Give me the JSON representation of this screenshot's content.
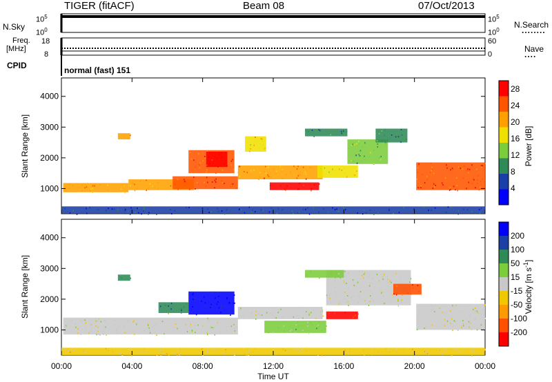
{
  "header": {
    "radar": "TIGER (fitACF)",
    "beam": "Beam 08",
    "date": "07/Oct/2013"
  },
  "sky_panel": {
    "label": "N.Sky",
    "ticks_left": [
      "10^5",
      "10^0"
    ],
    "ticks_right": [
      "10^5",
      "10^0"
    ],
    "right_label": "N.Search",
    "right_dots": "........"
  },
  "freq_panel": {
    "label_line1": "Freq.",
    "label_line2": "[MHz]",
    "ticks_left": [
      "18",
      "8"
    ],
    "ticks_right": [
      "60",
      "0"
    ],
    "right_label": "Nave",
    "right_dots": "...."
  },
  "cpid_panel": {
    "label": "CPID",
    "text": "normal (fast) 151"
  },
  "chart_data": [
    {
      "type": "heatmap",
      "title": "",
      "xlabel": "",
      "ylabel": "Slant Range [km]",
      "x_ticks": [
        "00:00",
        "04:00",
        "08:00",
        "12:00",
        "16:00",
        "20:00",
        "00:00"
      ],
      "xlim_hours": [
        0,
        24
      ],
      "y_ticks": [
        1000,
        2000,
        3000,
        4000
      ],
      "ylim": [
        180,
        4600
      ],
      "colorbar": {
        "label": "Power [dB]",
        "ticks": [
          4,
          8,
          12,
          16,
          20,
          24,
          28
        ],
        "range": [
          0,
          30
        ],
        "colors": [
          "#0000ff",
          "#1a3fa6",
          "#2e8b57",
          "#7ccd3c",
          "#f0e000",
          "#ffa000",
          "#ff5500",
          "#ff0000"
        ]
      },
      "regions": [
        {
          "t0": 0.1,
          "t1": 3.8,
          "r0": 880,
          "r1": 1180,
          "value": 20
        },
        {
          "t0": 3.8,
          "t1": 7.5,
          "r0": 950,
          "r1": 1300,
          "value": 22
        },
        {
          "t0": 6.3,
          "t1": 10.0,
          "r0": 980,
          "r1": 1400,
          "value": 26
        },
        {
          "t0": 7.2,
          "t1": 9.8,
          "r0": 1500,
          "r1": 2250,
          "value": 24
        },
        {
          "t0": 8.2,
          "t1": 9.4,
          "r0": 1700,
          "r1": 2200,
          "value": 29
        },
        {
          "t0": 10.0,
          "t1": 14.8,
          "r0": 1300,
          "r1": 1750,
          "value": 22
        },
        {
          "t0": 11.8,
          "t1": 14.6,
          "r0": 950,
          "r1": 1200,
          "value": 27
        },
        {
          "t0": 14.5,
          "t1": 16.8,
          "r0": 1350,
          "r1": 1750,
          "value": 17
        },
        {
          "t0": 16.2,
          "t1": 18.5,
          "r0": 1800,
          "r1": 2600,
          "value": 12
        },
        {
          "t0": 17.8,
          "t1": 19.6,
          "r0": 2500,
          "r1": 2950,
          "value": 9
        },
        {
          "t0": 20.1,
          "t1": 24.0,
          "r0": 950,
          "r1": 1850,
          "value": 25
        },
        {
          "t0": 10.4,
          "t1": 11.6,
          "r0": 2200,
          "r1": 2700,
          "value": 18
        },
        {
          "t0": 13.8,
          "t1": 16.2,
          "r0": 2700,
          "r1": 2950,
          "value": 10
        },
        {
          "t0": 3.2,
          "t1": 3.9,
          "r0": 2600,
          "r1": 2800,
          "value": 21
        },
        {
          "t0": 0.0,
          "t1": 24.0,
          "r0": 180,
          "r1": 420,
          "value": 6
        }
      ]
    },
    {
      "type": "heatmap",
      "title": "",
      "xlabel": "Time UT",
      "ylabel": "Slant Range [km]",
      "x_ticks": [
        "00:00",
        "04:00",
        "08:00",
        "12:00",
        "16:00",
        "20:00",
        "00:00"
      ],
      "xlim_hours": [
        0,
        24
      ],
      "y_ticks": [
        1000,
        2000,
        3000,
        4000
      ],
      "ylim": [
        180,
        4600
      ],
      "colorbar": {
        "label": "Velocity [m s^-1]",
        "ticks": [
          200,
          100,
          50,
          15,
          -15,
          -50,
          -100,
          -200
        ],
        "range": [
          -250,
          250
        ],
        "colors": [
          "#ff0000",
          "#ff5000",
          "#ff9a00",
          "#f0c800",
          "#c8c8c8",
          "#7ccd3c",
          "#2e8b57",
          "#1a3fa6",
          "#0000ff"
        ]
      },
      "regions": [
        {
          "t0": 0.1,
          "t1": 10.0,
          "r0": 850,
          "r1": 1400,
          "value": 0
        },
        {
          "t0": 7.2,
          "t1": 9.8,
          "r0": 1500,
          "r1": 2250,
          "value": 200
        },
        {
          "t0": 5.5,
          "t1": 7.2,
          "r0": 1550,
          "r1": 1900,
          "value": 120
        },
        {
          "t0": 10.0,
          "t1": 14.8,
          "r0": 1350,
          "r1": 1750,
          "value": 0
        },
        {
          "t0": 11.5,
          "t1": 15.0,
          "r0": 900,
          "r1": 1300,
          "value": 40
        },
        {
          "t0": 15.0,
          "t1": 16.8,
          "r0": 1350,
          "r1": 1600,
          "value": -200
        },
        {
          "t0": 15.0,
          "t1": 19.8,
          "r0": 1800,
          "r1": 2950,
          "value": 0
        },
        {
          "t0": 18.8,
          "t1": 20.4,
          "r0": 2150,
          "r1": 2500,
          "value": -180
        },
        {
          "t0": 20.1,
          "t1": 24.0,
          "r0": 1000,
          "r1": 1850,
          "value": 0
        },
        {
          "t0": 13.8,
          "t1": 16.0,
          "r0": 2700,
          "r1": 2950,
          "value": 40
        },
        {
          "t0": 3.2,
          "t1": 3.9,
          "r0": 2600,
          "r1": 2800,
          "value": 120
        },
        {
          "t0": 0.0,
          "t1": 24.0,
          "r0": 180,
          "r1": 420,
          "value": -40
        }
      ]
    }
  ]
}
